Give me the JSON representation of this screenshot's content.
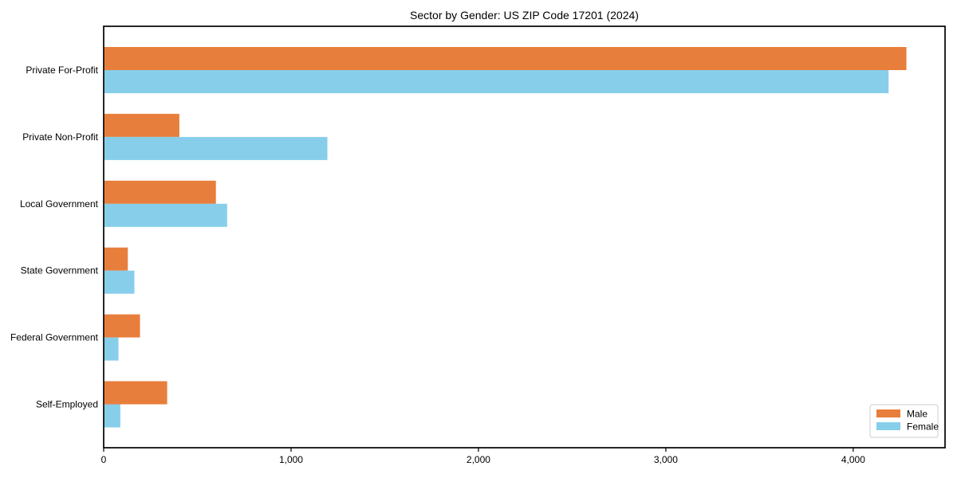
{
  "chart_data": {
    "type": "bar",
    "orientation": "horizontal",
    "title": "Sector by Gender: US ZIP Code 17201 (2024)",
    "categories": [
      "Private For-Profit",
      "Private Non-Profit",
      "Local Government",
      "State Government",
      "Federal Government",
      "Self-Employed"
    ],
    "series": [
      {
        "name": "Male",
        "color": "#E87E3B",
        "values": [
          4280,
          400,
          595,
          125,
          190,
          335
        ]
      },
      {
        "name": "Female",
        "color": "#87CEEB",
        "values": [
          4185,
          1190,
          655,
          160,
          75,
          85
        ]
      }
    ],
    "xlabel": "",
    "ylabel": "",
    "xlim": [
      0,
      4490
    ],
    "x_ticks": [
      {
        "value": 0,
        "label": "0"
      },
      {
        "value": 1000,
        "label": "1,000"
      },
      {
        "value": 2000,
        "label": "2,000"
      },
      {
        "value": 3000,
        "label": "3,000"
      },
      {
        "value": 4000,
        "label": "4,000"
      }
    ],
    "legend": {
      "position": "lower right",
      "entries": [
        "Male",
        "Female"
      ]
    },
    "grid": false,
    "background": "#ffffff",
    "axis_color": "#000000",
    "legend_border_color": "#cccccc"
  }
}
